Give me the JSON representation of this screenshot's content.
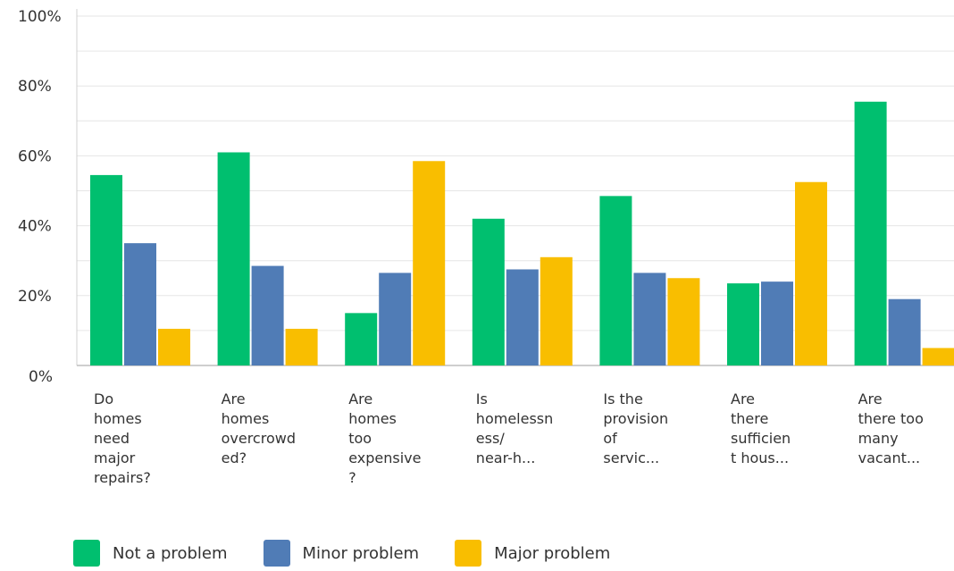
{
  "chart_data": {
    "type": "bar",
    "categories": [
      "Do\nhomes\nneed\nmajor\nrepairs?",
      "Are\nhomes\novercrowd\ned?",
      "Are\nhomes\ntoo\nexpensive\n?",
      "Is\nhomelessn\ness/\nnear-h...",
      "Is the\nprovision\nof\nservic...",
      "Are\nthere\nsufficien\nt hous...",
      "Are\nthere too\nmany\nvacant..."
    ],
    "series": [
      {
        "name": "Not a problem",
        "color": "#00bf6f",
        "values": [
          54.5,
          61,
          15,
          42,
          48.5,
          23.5,
          75.5
        ]
      },
      {
        "name": "Minor problem",
        "color": "#507cb6",
        "values": [
          35,
          28.5,
          26.5,
          27.5,
          26.5,
          24,
          19
        ]
      },
      {
        "name": "Major problem",
        "color": "#f9be00",
        "values": [
          10.5,
          10.5,
          58.5,
          31,
          25,
          52.5,
          5
        ]
      }
    ],
    "yticks": [
      "0%",
      "20%",
      "40%",
      "60%",
      "80%",
      "100%"
    ],
    "ylim": [
      0,
      100
    ],
    "grid": true,
    "legend_position": "bottom"
  }
}
